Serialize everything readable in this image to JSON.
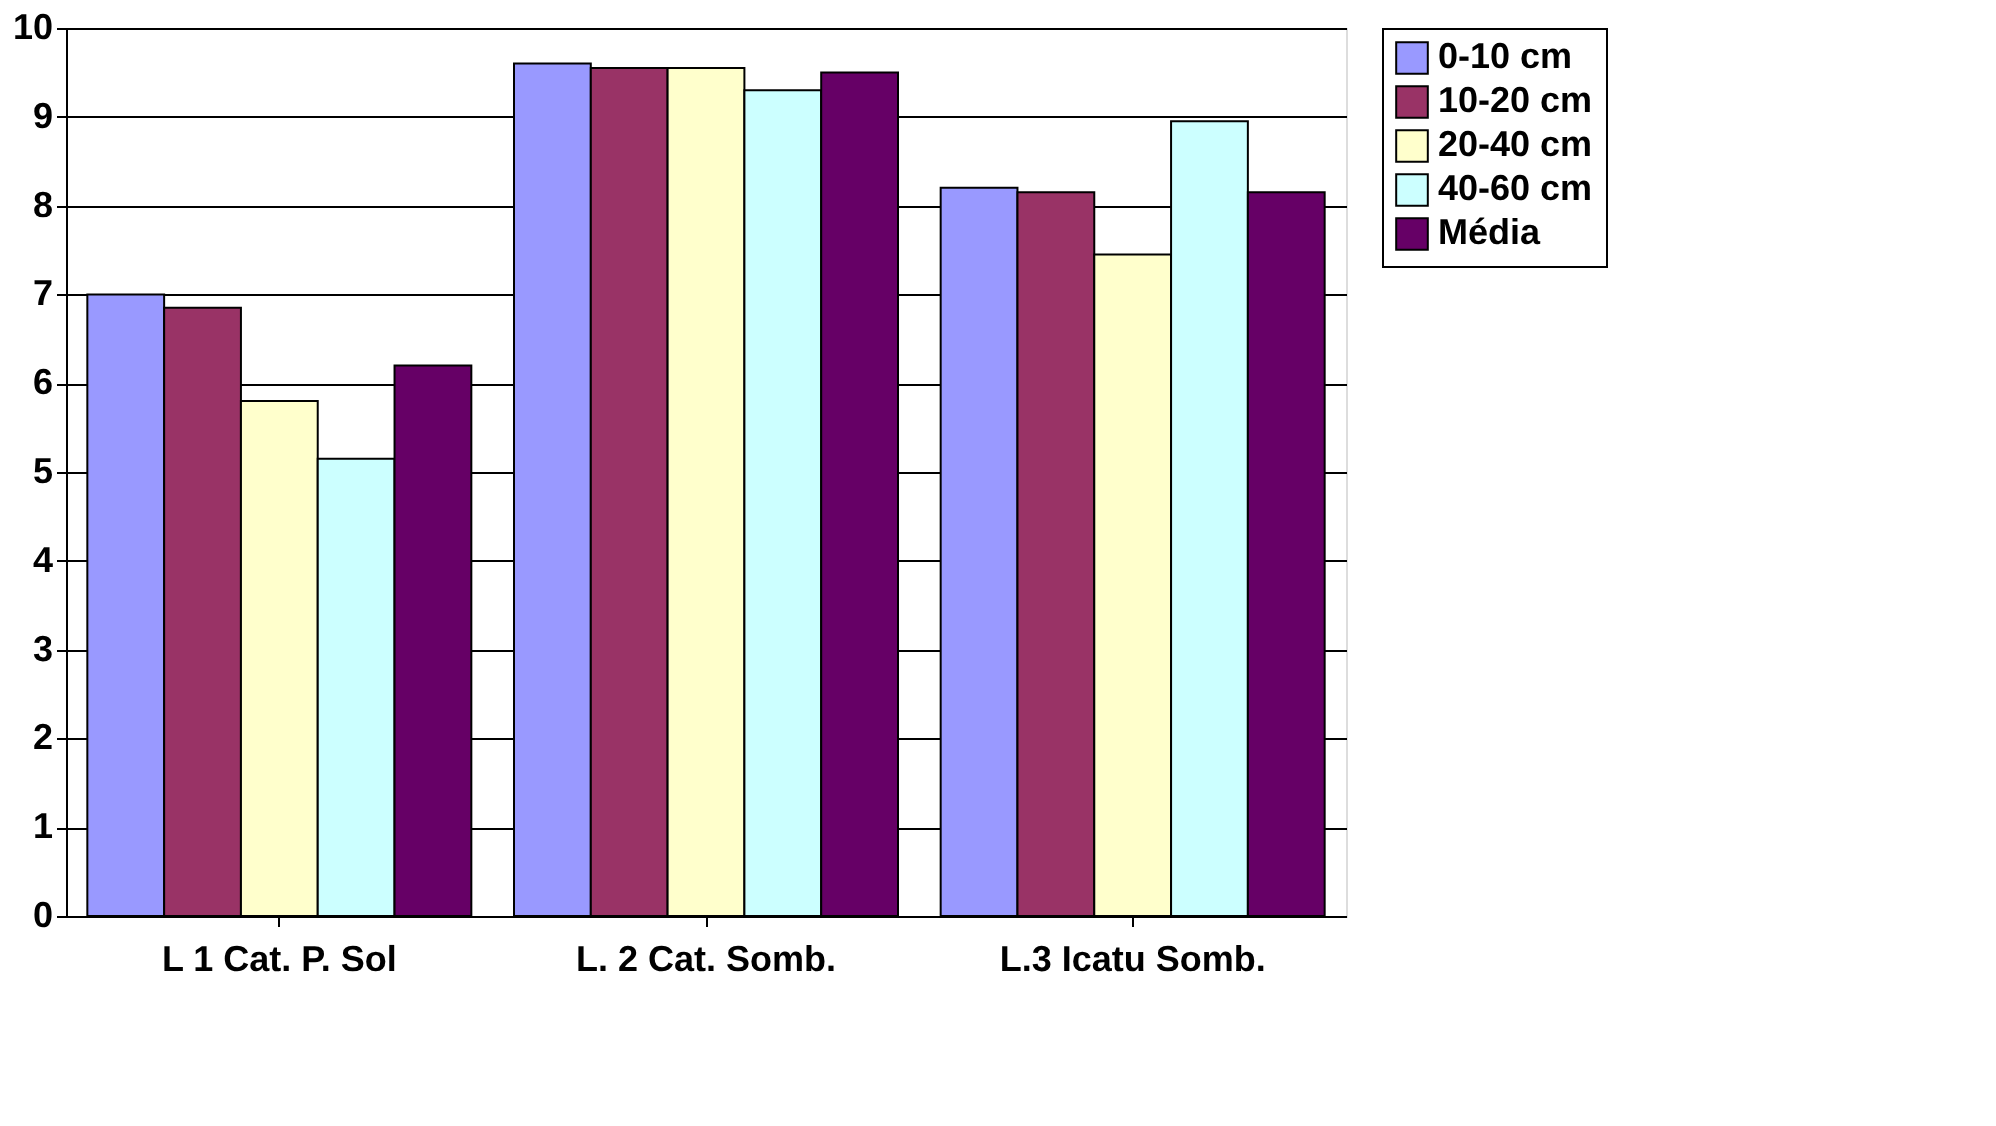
{
  "chart_data": {
    "type": "bar",
    "categories": [
      "L 1 Cat. P. Sol",
      "L. 2 Cat. Somb.",
      "L.3 Icatu Somb."
    ],
    "series": [
      {
        "name": "0-10 cm",
        "color": "#9999ff",
        "values": [
          7.0,
          9.6,
          8.2
        ]
      },
      {
        "name": "10-20 cm",
        "color": "#993366",
        "values": [
          6.85,
          9.55,
          8.15
        ]
      },
      {
        "name": "20-40 cm",
        "color": "#ffffcc",
        "values": [
          5.8,
          9.55,
          7.45
        ]
      },
      {
        "name": "40-60 cm",
        "color": "#ccffff",
        "values": [
          5.15,
          9.3,
          8.95
        ]
      },
      {
        "name": "Média",
        "color": "#660066",
        "values": [
          6.2,
          9.5,
          8.15
        ]
      }
    ],
    "ylim": [
      0,
      10
    ],
    "yticks": [
      0,
      1,
      2,
      3,
      4,
      5,
      6,
      7,
      8,
      9,
      10
    ],
    "grid": "y",
    "legend": "right"
  }
}
